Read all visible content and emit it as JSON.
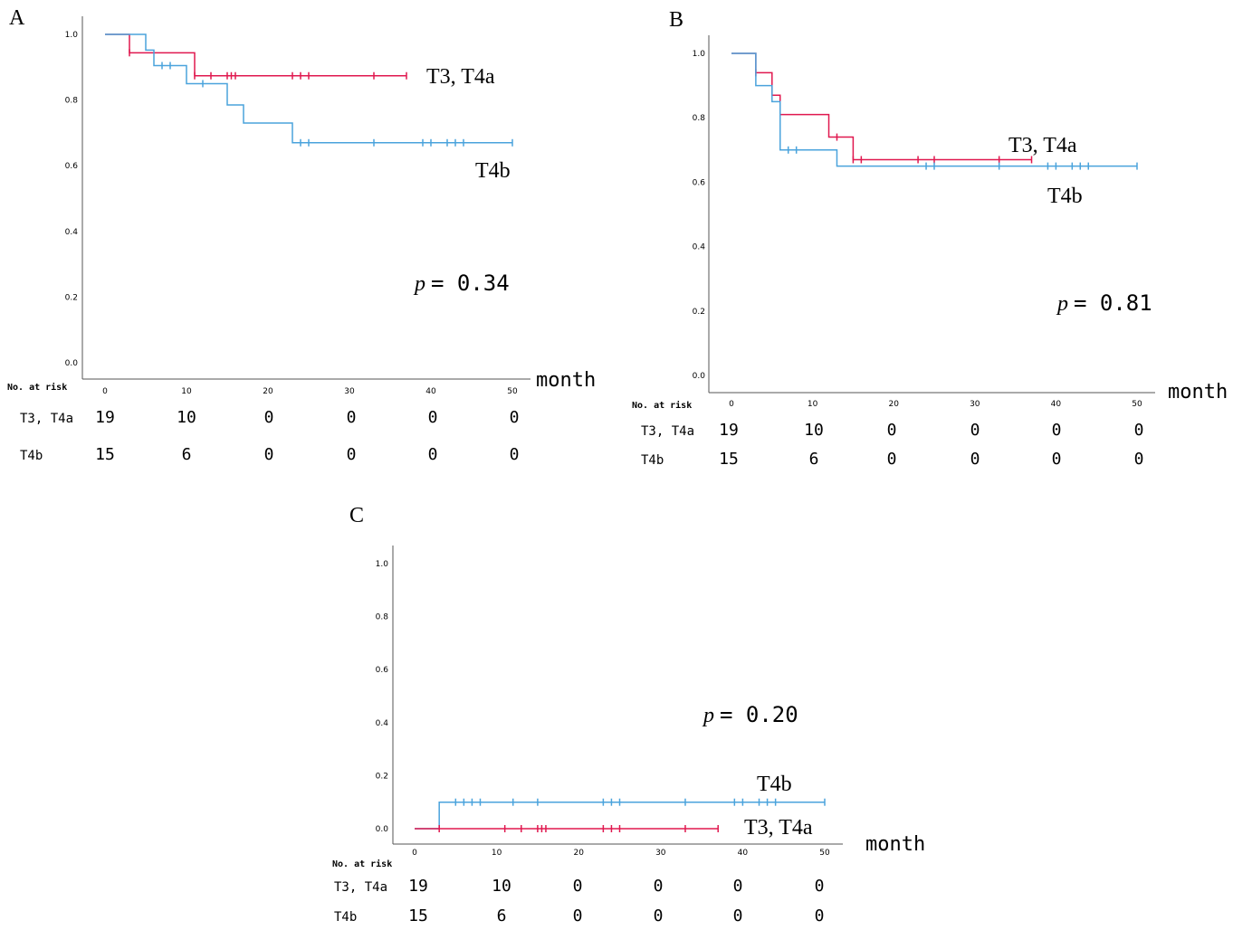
{
  "chart_data": [
    {
      "panel": "A",
      "type": "line",
      "xlabel": "month",
      "xlim": [
        0,
        50
      ],
      "ylim": [
        0,
        1
      ],
      "xticks": [
        0,
        10,
        20,
        30,
        40,
        50
      ],
      "yticks": [
        "0.0",
        "0.2",
        "0.4",
        "0.6",
        "0.8",
        "1.0"
      ],
      "p_symbol": "p",
      "p_value": "= 0.34",
      "series": [
        {
          "name": "T3, T4a",
          "color": "#e0184f",
          "steps": [
            [
              0,
              1.0
            ],
            [
              3,
              0.944
            ],
            [
              11,
              0.874
            ],
            [
              37,
              0.874
            ]
          ],
          "censored": [
            3,
            11,
            13,
            15,
            15.5,
            16,
            23,
            24,
            25,
            33,
            37
          ]
        },
        {
          "name": "T4b",
          "color": "#4aa3dc",
          "steps": [
            [
              0,
              1.0
            ],
            [
              5,
              0.952
            ],
            [
              6,
              0.905
            ],
            [
              10,
              0.85
            ],
            [
              15,
              0.785
            ],
            [
              17,
              0.73
            ],
            [
              23,
              0.67
            ],
            [
              50,
              0.67
            ]
          ],
          "censored": [
            7,
            8,
            12,
            24,
            25,
            33,
            39,
            40,
            42,
            43,
            44,
            50
          ]
        }
      ],
      "risk_table": {
        "header": "No. at risk",
        "rows": [
          {
            "label": "T3, T4a",
            "values": [
              "19",
              "10",
              "0",
              "0",
              "0",
              "0"
            ]
          },
          {
            "label": "T4b",
            "values": [
              "15",
              "6",
              "0",
              "0",
              "0",
              "0"
            ]
          }
        ]
      }
    },
    {
      "panel": "B",
      "type": "line",
      "xlabel": "month",
      "xlim": [
        0,
        50
      ],
      "ylim": [
        0,
        1
      ],
      "xticks": [
        0,
        10,
        20,
        30,
        40,
        50
      ],
      "yticks": [
        "0.0",
        "0.2",
        "0.4",
        "0.6",
        "0.8",
        "1.0"
      ],
      "p_symbol": "p",
      "p_value": "= 0.81",
      "series": [
        {
          "name": "T3, T4a",
          "color": "#e0184f",
          "steps": [
            [
              0,
              1.0
            ],
            [
              3,
              0.94
            ],
            [
              5,
              0.87
            ],
            [
              6,
              0.81
            ],
            [
              12,
              0.74
            ],
            [
              15,
              0.67
            ],
            [
              37,
              0.67
            ]
          ],
          "censored": [
            3,
            13,
            15,
            16,
            23,
            25,
            33,
            37
          ]
        },
        {
          "name": "T4b",
          "color": "#4aa3dc",
          "steps": [
            [
              0,
              1.0
            ],
            [
              3,
              0.9
            ],
            [
              5,
              0.85
            ],
            [
              6,
              0.7
            ],
            [
              13,
              0.65
            ],
            [
              50,
              0.65
            ]
          ],
          "censored": [
            7,
            8,
            24,
            25,
            33,
            39,
            40,
            42,
            43,
            44,
            50
          ]
        }
      ],
      "risk_table": {
        "header": "No. at risk",
        "rows": [
          {
            "label": "T3, T4a",
            "values": [
              "19",
              "10",
              "0",
              "0",
              "0",
              "0"
            ]
          },
          {
            "label": "T4b",
            "values": [
              "15",
              "6",
              "0",
              "0",
              "0",
              "0"
            ]
          }
        ]
      }
    },
    {
      "panel": "C",
      "type": "line",
      "xlabel": "month",
      "xlim": [
        0,
        50
      ],
      "ylim": [
        0,
        1
      ],
      "xticks": [
        0,
        10,
        20,
        30,
        40,
        50
      ],
      "yticks": [
        "0.0",
        "0.2",
        "0.4",
        "0.6",
        "0.8",
        "1.0"
      ],
      "p_symbol": "p",
      "p_value": "= 0.20",
      "series": [
        {
          "name": "T4b",
          "color": "#4aa3dc",
          "steps": [
            [
              0,
              0.0
            ],
            [
              3,
              0.0
            ],
            [
              3,
              0.1
            ],
            [
              50,
              0.1
            ]
          ],
          "censored": [
            5,
            6,
            7,
            8,
            12,
            15,
            23,
            24,
            25,
            33,
            39,
            40,
            42,
            43,
            44,
            50
          ]
        },
        {
          "name": "T3, T4a",
          "color": "#e0184f",
          "steps": [
            [
              0,
              0.0
            ],
            [
              37,
              0.0
            ]
          ],
          "censored": [
            3,
            11,
            13,
            15,
            15.5,
            16,
            23,
            24,
            25,
            33,
            37
          ]
        }
      ],
      "risk_table": {
        "header": "No. at risk",
        "rows": [
          {
            "label": "T3, T4a",
            "values": [
              "19",
              "10",
              "0",
              "0",
              "0",
              "0"
            ]
          },
          {
            "label": "T4b",
            "values": [
              "15",
              "6",
              "0",
              "0",
              "0",
              "0"
            ]
          }
        ]
      }
    }
  ]
}
